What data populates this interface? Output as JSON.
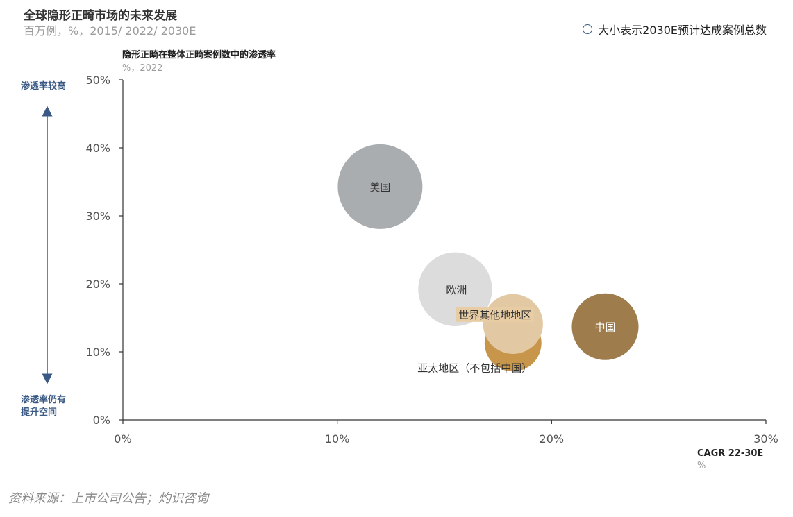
{
  "header": {
    "title": "全球隐形正畸市场的未来发展",
    "subtitle": "百万例，%，2015/ 2022/ 2030E",
    "legend": "大小表示2030E预计达成案例总数"
  },
  "side": {
    "top_label": "渗透率较高",
    "bottom_label_1": "渗透率仍有",
    "bottom_label_2": "提升空间"
  },
  "source": "资料来源：上市公司公告；灼识咨询",
  "chart_data": {
    "type": "scatter",
    "ylabel": "隐形正畸在整体正畸案例数中的渗透率",
    "ylabel_unit": "%，2022",
    "xlabel": "CAGR 22-30E",
    "xlabel_unit": "%",
    "xlim": [
      0,
      30
    ],
    "ylim": [
      0,
      50
    ],
    "x_ticks": [
      "0%",
      "10%",
      "20%",
      "30%"
    ],
    "y_ticks": [
      "0%",
      "10%",
      "20%",
      "30%",
      "40%",
      "50%"
    ],
    "grid": false,
    "series": [
      {
        "name": "美国",
        "x": 12.0,
        "y": 34.3,
        "size": 1.0,
        "color": "#a9adaf",
        "label_color": "#333333"
      },
      {
        "name": "欧洲",
        "x": 15.5,
        "y": 19.2,
        "size": 0.76,
        "color": "#dcdcdc",
        "label_color": "#333333"
      },
      {
        "name": "亚太地区（不包括中国）",
        "x": 18.2,
        "y": 11.3,
        "size": 0.45,
        "color": "#c8964a",
        "label_color": "#333333"
      },
      {
        "name": "世界其他地地区",
        "x": 18.2,
        "y": 14.1,
        "size": 0.5,
        "color": "#e2c9a4",
        "label_color": "#333333"
      },
      {
        "name": "中国",
        "x": 22.5,
        "y": 13.7,
        "size": 0.62,
        "color": "#9e7c4c",
        "label_color": "#ffffff"
      }
    ]
  }
}
